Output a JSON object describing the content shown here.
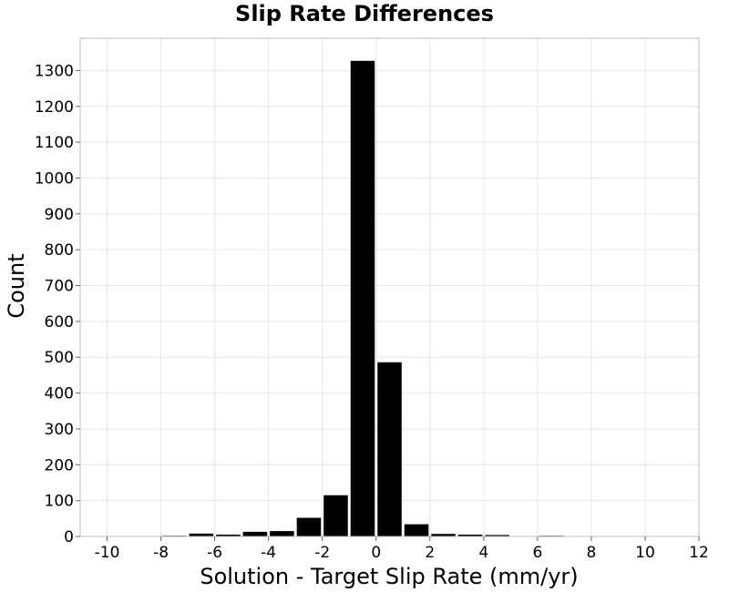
{
  "chart_data": {
    "type": "bar",
    "title": "Slip Rate Differences",
    "xlabel": "Solution - Target Slip Rate (mm/yr)",
    "ylabel": "Count",
    "xlim": [
      -11,
      12
    ],
    "ylim": [
      0,
      1390
    ],
    "x_ticks": [
      -10,
      -8,
      -6,
      -4,
      -2,
      0,
      2,
      4,
      6,
      8,
      10,
      12
    ],
    "y_ticks": [
      0,
      100,
      200,
      300,
      400,
      500,
      600,
      700,
      800,
      900,
      1000,
      1100,
      1200,
      1300
    ],
    "grid": true,
    "bin_width": 1,
    "bins": [
      {
        "center": -6.5,
        "value": 8
      },
      {
        "center": -5.5,
        "value": 5
      },
      {
        "center": -4.5,
        "value": 13
      },
      {
        "center": -3.5,
        "value": 15
      },
      {
        "center": -2.5,
        "value": 52
      },
      {
        "center": -1.5,
        "value": 115
      },
      {
        "center": -0.5,
        "value": 1327
      },
      {
        "center": 0.5,
        "value": 486
      },
      {
        "center": 1.5,
        "value": 34
      },
      {
        "center": 2.5,
        "value": 7
      },
      {
        "center": 3.5,
        "value": 5
      },
      {
        "center": 4.5,
        "value": 4
      },
      {
        "center": 6.5,
        "value": 2
      },
      {
        "center": -7.5,
        "value": 2
      }
    ],
    "colors": {
      "bar": "#000000",
      "grid": "#e6e6e6",
      "frame": "#bcbcbc"
    }
  }
}
